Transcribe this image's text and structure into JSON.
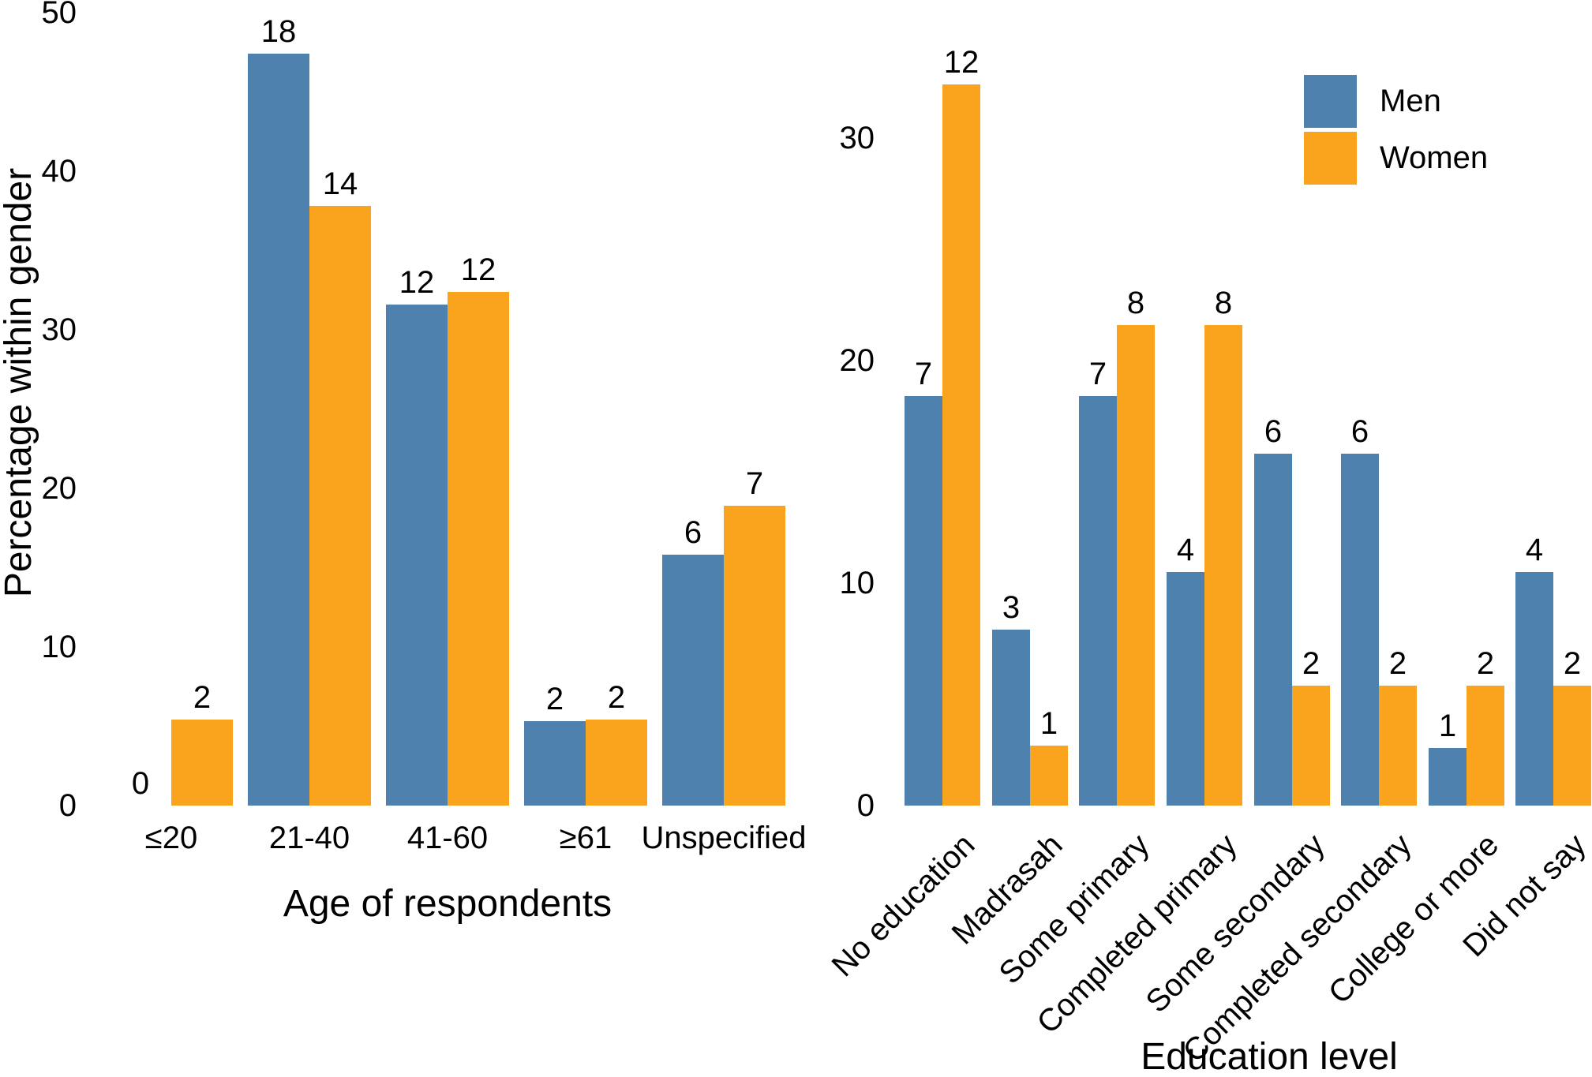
{
  "figure": {
    "background": "#ffffff",
    "text_color": "#000000"
  },
  "legend": {
    "position": "top-right-of-right-panel",
    "items": [
      {
        "label": "Men",
        "color": "#4e81ad"
      },
      {
        "label": "Women",
        "color": "#faa41e"
      }
    ]
  },
  "chart_data": [
    {
      "type": "bar",
      "title": "",
      "xlabel": "Age of respondents",
      "ylabel": "Percentage within gender",
      "categories": [
        "≤20",
        "21-40",
        "41-60",
        "≥61",
        "Unspecified"
      ],
      "yticks": [
        0,
        10,
        20,
        30,
        40,
        50
      ],
      "ylim": [
        0,
        50
      ],
      "grid": false,
      "axis_lines": false,
      "bar_value_labels_are": "counts shown above each bar",
      "series": [
        {
          "name": "Men",
          "color": "#4e81ad",
          "counts": [
            0,
            18,
            12,
            2,
            6
          ],
          "pct": [
            0,
            47.4,
            31.6,
            5.3,
            15.8
          ]
        },
        {
          "name": "Women",
          "color": "#faa41e",
          "counts": [
            2,
            14,
            12,
            2,
            7
          ],
          "pct": [
            5.4,
            37.8,
            32.4,
            5.4,
            18.9
          ]
        }
      ]
    },
    {
      "type": "bar",
      "title": "",
      "xlabel": "Education level",
      "ylabel": "",
      "categories": [
        "No education",
        "Madrasah",
        "Some primary",
        "Completed primary",
        "Some secondary",
        "Completed secondary",
        "College or more",
        "Did not say"
      ],
      "yticks": [
        0,
        10,
        20,
        30
      ],
      "ylim": [
        0,
        36
      ],
      "grid": false,
      "axis_lines": false,
      "x_tick_label_rotation_deg": 45,
      "bar_value_labels_are": "counts shown above each bar",
      "series": [
        {
          "name": "Men",
          "color": "#4e81ad",
          "counts": [
            7,
            3,
            7,
            4,
            6,
            6,
            1,
            4
          ],
          "pct": [
            18.4,
            7.9,
            18.4,
            10.5,
            15.8,
            15.8,
            2.6,
            10.5
          ]
        },
        {
          "name": "Women",
          "color": "#faa41e",
          "counts": [
            12,
            1,
            8,
            8,
            2,
            2,
            2,
            2
          ],
          "pct": [
            32.4,
            2.7,
            21.6,
            21.6,
            5.4,
            5.4,
            5.4,
            5.4
          ]
        }
      ]
    }
  ]
}
